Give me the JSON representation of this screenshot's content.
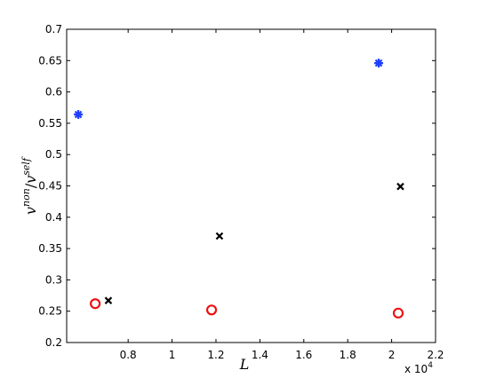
{
  "chart_data": {
    "type": "scatter",
    "xlabel": "L",
    "x_multiplier": {
      "base": "x 10",
      "exp": "4"
    },
    "ylabel": {
      "num": "v",
      "num_sup": "non",
      "sep": "/",
      "den": "v",
      "den_sup": "self"
    },
    "xlim": [
      0.52,
      2.2
    ],
    "xticks": [
      0.8,
      1,
      1.2,
      1.4,
      1.6,
      1.8,
      2,
      2.2
    ],
    "ylim": [
      0.2,
      0.7
    ],
    "yticks": [
      0.2,
      0.25,
      0.3,
      0.35,
      0.4,
      0.45,
      0.5,
      0.55,
      0.6,
      0.65,
      0.7
    ],
    "series": [
      {
        "marker": "asterisk",
        "color": "#1f3fff",
        "x": [
          0.573,
          1.941
        ],
        "values": [
          0.564,
          0.646
        ]
      },
      {
        "marker": "x",
        "color": "#000000",
        "x": [
          0.71,
          1.216,
          2.04
        ],
        "values": [
          0.267,
          0.37,
          0.449
        ]
      },
      {
        "marker": "circle",
        "color": "#ee1111",
        "x": [
          0.65,
          1.18,
          2.03
        ],
        "values": [
          0.262,
          0.252,
          0.247
        ]
      }
    ]
  }
}
